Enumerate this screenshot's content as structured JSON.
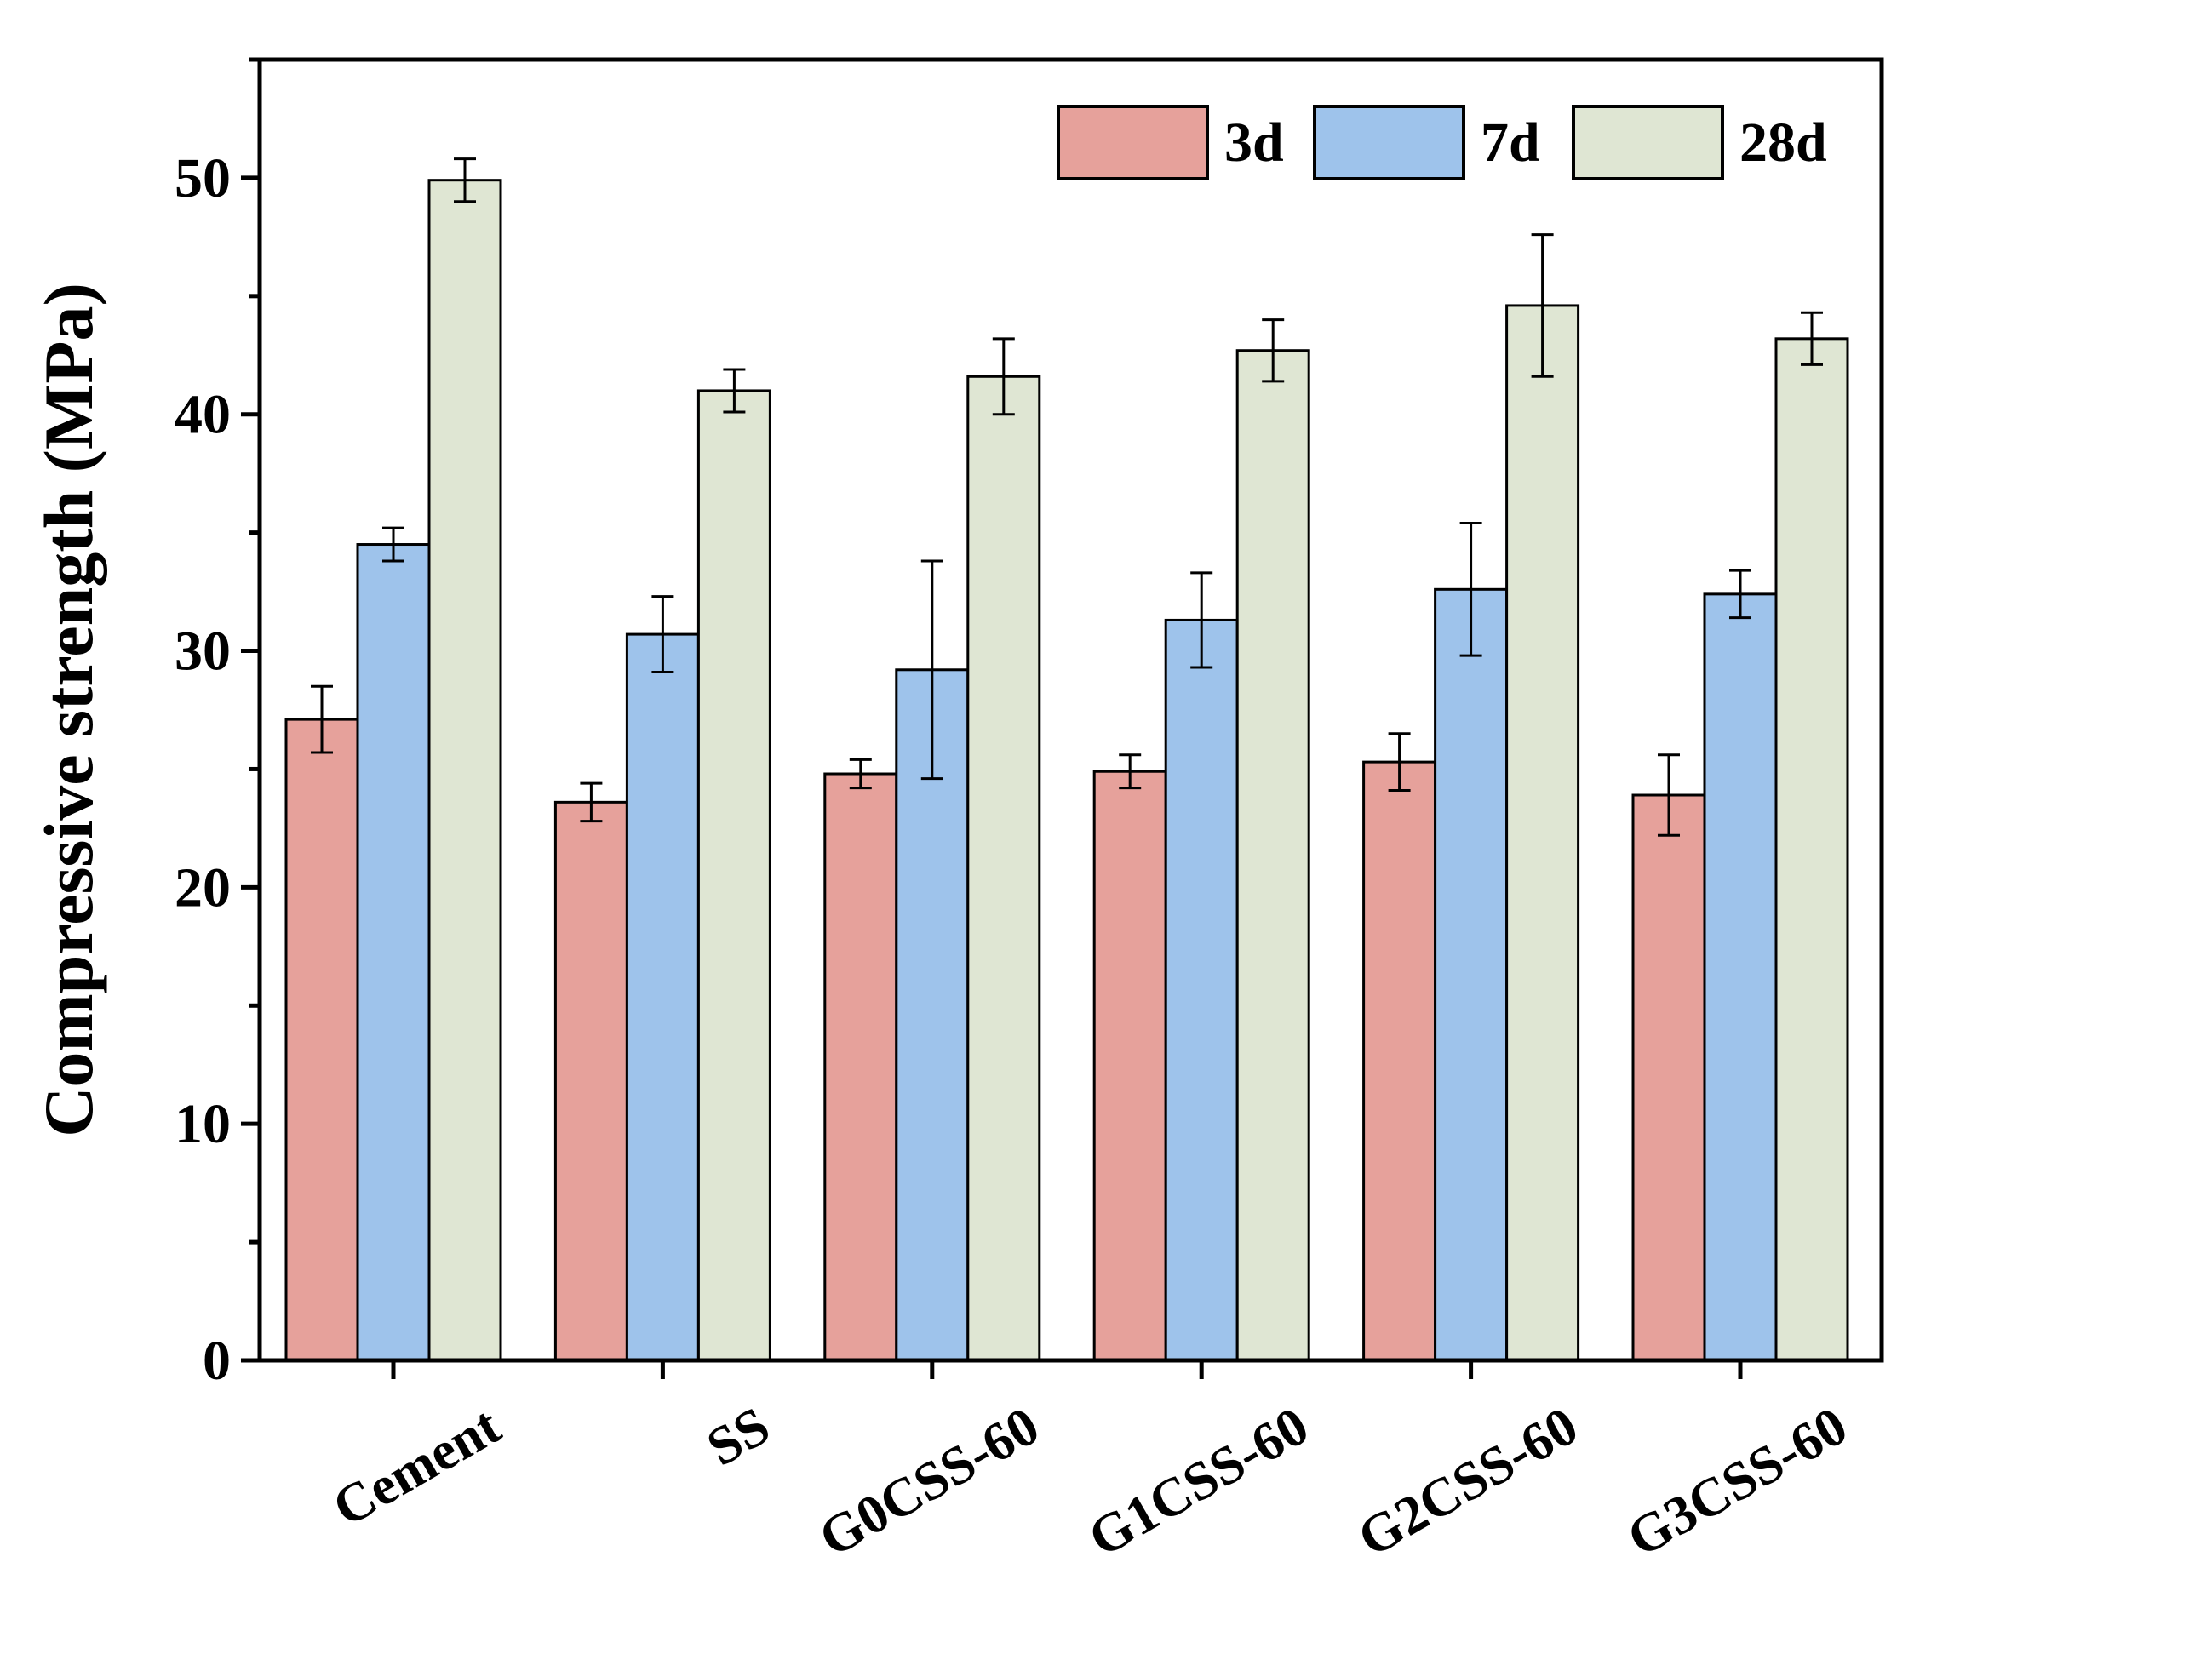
{
  "chart_data": {
    "type": "bar",
    "title": "",
    "xlabel": "",
    "ylabel": "Compressive strength (MPa)",
    "ylim": [
      0,
      55
    ],
    "yticks": [
      0,
      10,
      20,
      30,
      40,
      50
    ],
    "categories": [
      "Cement",
      "SS",
      "G0CSS-60",
      "G1CSS-60",
      "G2CSS-60",
      "G3CSS-60"
    ],
    "series": [
      {
        "name": "3d",
        "color": "#E6A19B",
        "values": [
          27.1,
          23.6,
          24.8,
          24.9,
          25.3,
          23.9
        ],
        "errors": [
          1.4,
          0.8,
          0.6,
          0.7,
          1.2,
          1.7
        ]
      },
      {
        "name": "7d",
        "color": "#9EC3EB",
        "values": [
          34.5,
          30.7,
          29.2,
          31.3,
          32.6,
          32.4
        ],
        "errors": [
          0.7,
          1.6,
          4.6,
          2.0,
          2.8,
          1.0
        ]
      },
      {
        "name": "28d",
        "color": "#DFE6D3",
        "values": [
          49.9,
          41.0,
          41.6,
          42.7,
          44.6,
          43.2
        ],
        "errors": [
          0.9,
          0.9,
          1.6,
          1.3,
          3.0,
          1.1
        ]
      }
    ],
    "legend_position": "top-right",
    "grid": false
  }
}
